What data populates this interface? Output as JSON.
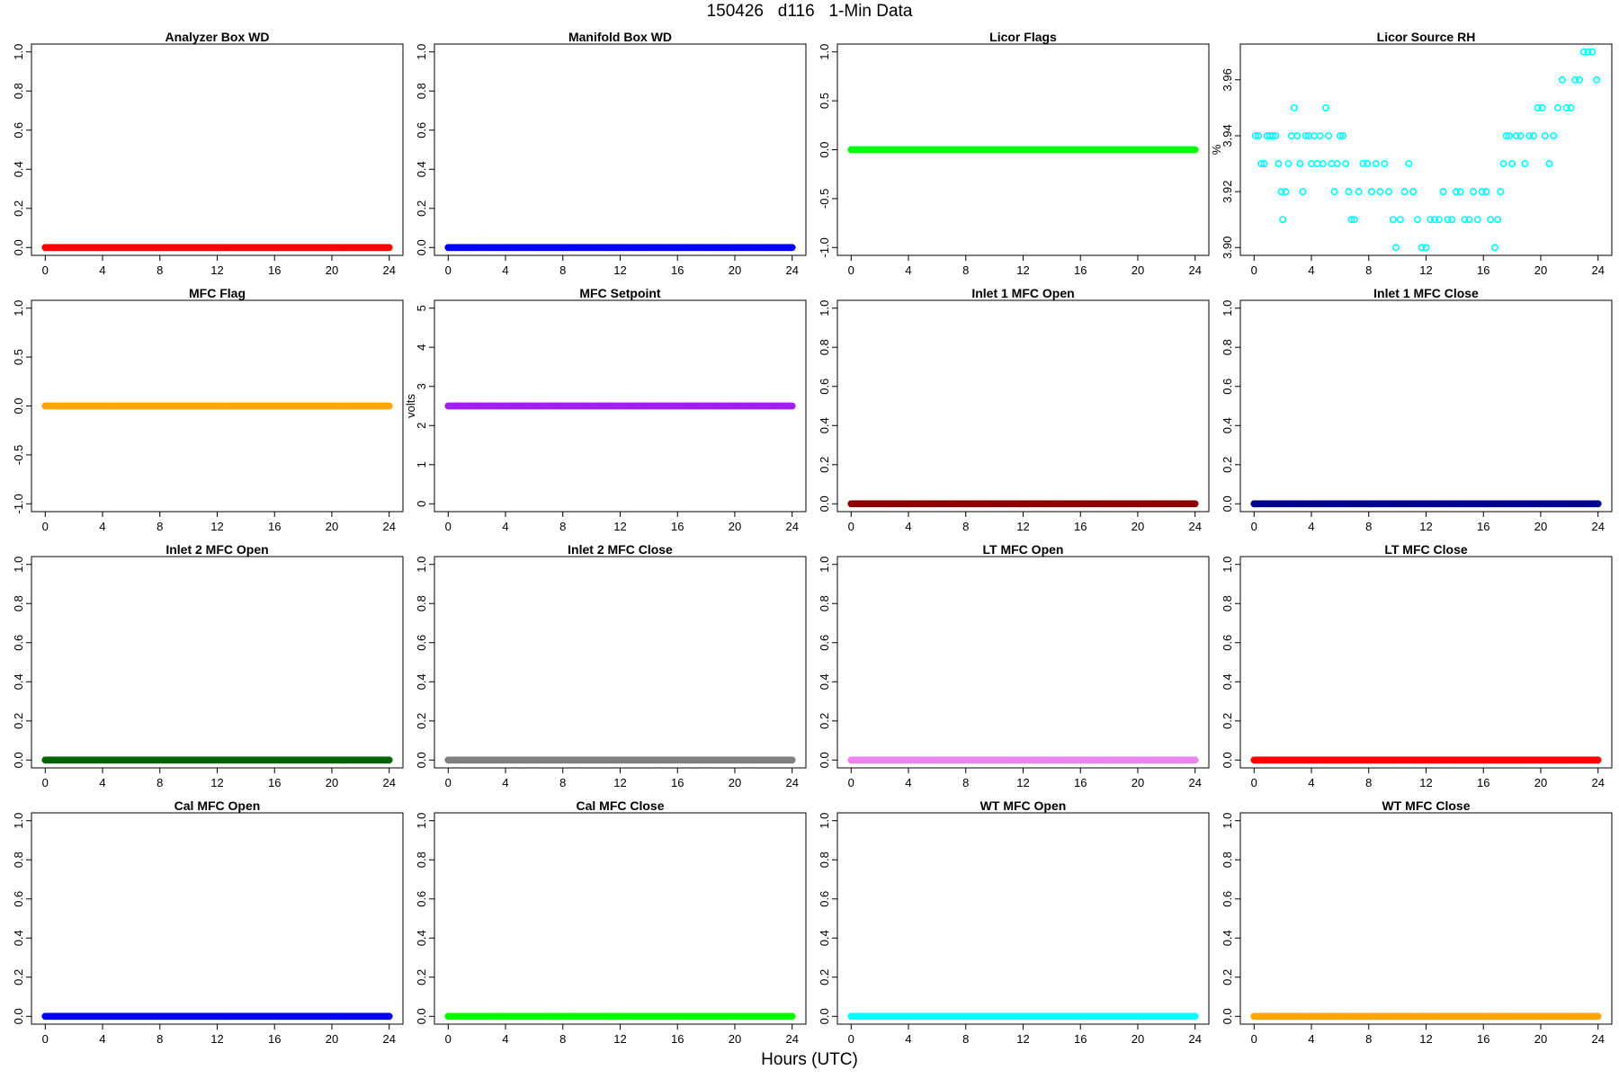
{
  "title": "150426   d116   1-Min Data",
  "xlabel": "Hours (UTC)",
  "chart_data": [
    {
      "type": "scatter",
      "title": "Analyzer Box WD",
      "ylabel": "",
      "color": "#ff0000",
      "xlim": [
        0,
        24
      ],
      "ylim": [
        0,
        1
      ],
      "xticks": [
        "0",
        "4",
        "8",
        "12",
        "16",
        "20",
        "24"
      ],
      "yticks": [
        "0.0",
        "0.2",
        "0.4",
        "0.6",
        "0.8",
        "1.0"
      ],
      "constant": 0
    },
    {
      "type": "scatter",
      "title": "Manifold Box WD",
      "ylabel": "",
      "color": "#0000ff",
      "xlim": [
        0,
        24
      ],
      "ylim": [
        0,
        1
      ],
      "xticks": [
        "0",
        "4",
        "8",
        "12",
        "16",
        "20",
        "24"
      ],
      "yticks": [
        "0.0",
        "0.2",
        "0.4",
        "0.6",
        "0.8",
        "1.0"
      ],
      "constant": 0
    },
    {
      "type": "scatter",
      "title": "Licor Flags",
      "ylabel": "",
      "color": "#00ff00",
      "xlim": [
        0,
        24
      ],
      "ylim": [
        -1,
        1
      ],
      "xticks": [
        "0",
        "4",
        "8",
        "12",
        "16",
        "20",
        "24"
      ],
      "yticks": [
        "-1.0",
        "-0.5",
        "0.0",
        "0.5",
        "1.0"
      ],
      "constant": 0
    },
    {
      "type": "scatter",
      "title": "Licor Source RH",
      "ylabel": "%",
      "color": "#00ffff",
      "xlim": [
        0,
        24
      ],
      "ylim": [
        3.9,
        3.97
      ],
      "xticks": [
        "0",
        "4",
        "8",
        "12",
        "16",
        "20",
        "24"
      ],
      "yticks": [
        "3.90",
        "3.92",
        "3.94",
        "3.96"
      ],
      "points": [
        [
          0.1,
          3.94
        ],
        [
          0.3,
          3.94
        ],
        [
          0.5,
          3.93
        ],
        [
          0.7,
          3.93
        ],
        [
          0.9,
          3.94
        ],
        [
          1.1,
          3.94
        ],
        [
          1.3,
          3.94
        ],
        [
          1.5,
          3.94
        ],
        [
          1.7,
          3.93
        ],
        [
          1.9,
          3.92
        ],
        [
          2.0,
          3.91
        ],
        [
          2.2,
          3.92
        ],
        [
          2.4,
          3.93
        ],
        [
          2.6,
          3.94
        ],
        [
          2.8,
          3.95
        ],
        [
          3.0,
          3.94
        ],
        [
          3.2,
          3.93
        ],
        [
          3.4,
          3.92
        ],
        [
          3.6,
          3.94
        ],
        [
          3.8,
          3.94
        ],
        [
          4.0,
          3.93
        ],
        [
          4.2,
          3.94
        ],
        [
          4.4,
          3.93
        ],
        [
          4.6,
          3.94
        ],
        [
          4.8,
          3.93
        ],
        [
          5.0,
          3.95
        ],
        [
          5.2,
          3.94
        ],
        [
          5.4,
          3.93
        ],
        [
          5.6,
          3.92
        ],
        [
          5.8,
          3.93
        ],
        [
          6.0,
          3.94
        ],
        [
          6.2,
          3.94
        ],
        [
          6.4,
          3.93
        ],
        [
          6.6,
          3.92
        ],
        [
          6.8,
          3.91
        ],
        [
          7.0,
          3.91
        ],
        [
          7.3,
          3.92
        ],
        [
          7.6,
          3.93
        ],
        [
          7.9,
          3.93
        ],
        [
          8.2,
          3.92
        ],
        [
          8.5,
          3.93
        ],
        [
          8.8,
          3.92
        ],
        [
          9.1,
          3.93
        ],
        [
          9.4,
          3.92
        ],
        [
          9.7,
          3.91
        ],
        [
          9.9,
          3.9
        ],
        [
          10.2,
          3.91
        ],
        [
          10.5,
          3.92
        ],
        [
          10.8,
          3.93
        ],
        [
          11.1,
          3.92
        ],
        [
          11.4,
          3.91
        ],
        [
          11.7,
          3.9
        ],
        [
          12.0,
          3.9
        ],
        [
          12.3,
          3.91
        ],
        [
          12.6,
          3.91
        ],
        [
          12.9,
          3.91
        ],
        [
          13.2,
          3.92
        ],
        [
          13.5,
          3.91
        ],
        [
          13.8,
          3.91
        ],
        [
          14.1,
          3.92
        ],
        [
          14.4,
          3.92
        ],
        [
          14.7,
          3.91
        ],
        [
          15.0,
          3.91
        ],
        [
          15.3,
          3.92
        ],
        [
          15.6,
          3.91
        ],
        [
          15.9,
          3.92
        ],
        [
          16.2,
          3.92
        ],
        [
          16.5,
          3.91
        ],
        [
          16.8,
          3.9
        ],
        [
          17.0,
          3.91
        ],
        [
          17.2,
          3.92
        ],
        [
          17.4,
          3.93
        ],
        [
          17.6,
          3.94
        ],
        [
          17.8,
          3.94
        ],
        [
          18.0,
          3.93
        ],
        [
          18.3,
          3.94
        ],
        [
          18.6,
          3.94
        ],
        [
          18.9,
          3.93
        ],
        [
          19.2,
          3.94
        ],
        [
          19.5,
          3.94
        ],
        [
          19.8,
          3.95
        ],
        [
          20.1,
          3.95
        ],
        [
          20.3,
          3.94
        ],
        [
          20.6,
          3.93
        ],
        [
          20.9,
          3.94
        ],
        [
          21.2,
          3.95
        ],
        [
          21.5,
          3.96
        ],
        [
          21.8,
          3.95
        ],
        [
          22.1,
          3.95
        ],
        [
          22.4,
          3.96
        ],
        [
          22.7,
          3.96
        ],
        [
          23.0,
          3.97
        ],
        [
          23.3,
          3.97
        ],
        [
          23.6,
          3.97
        ],
        [
          23.9,
          3.96
        ]
      ]
    },
    {
      "type": "scatter",
      "title": "MFC Flag",
      "ylabel": "",
      "color": "#ffa500",
      "xlim": [
        0,
        24
      ],
      "ylim": [
        -1,
        1
      ],
      "xticks": [
        "0",
        "4",
        "8",
        "12",
        "16",
        "20",
        "24"
      ],
      "yticks": [
        "-1.0",
        "-0.5",
        "0.0",
        "0.5",
        "1.0"
      ],
      "constant": 0
    },
    {
      "type": "scatter",
      "title": "MFC Setpoint",
      "ylabel": "volts",
      "color": "#a020f0",
      "xlim": [
        0,
        24
      ],
      "ylim": [
        0,
        5
      ],
      "xticks": [
        "0",
        "4",
        "8",
        "12",
        "16",
        "20",
        "24"
      ],
      "yticks": [
        "0",
        "1",
        "2",
        "3",
        "4",
        "5"
      ],
      "constant": 2.5
    },
    {
      "type": "scatter",
      "title": "Inlet 1 MFC Open",
      "ylabel": "",
      "color": "#8b0000",
      "xlim": [
        0,
        24
      ],
      "ylim": [
        0,
        1
      ],
      "xticks": [
        "0",
        "4",
        "8",
        "12",
        "16",
        "20",
        "24"
      ],
      "yticks": [
        "0.0",
        "0.2",
        "0.4",
        "0.6",
        "0.8",
        "1.0"
      ],
      "constant": 0
    },
    {
      "type": "scatter",
      "title": "Inlet 1 MFC Close",
      "ylabel": "",
      "color": "#00008b",
      "xlim": [
        0,
        24
      ],
      "ylim": [
        0,
        1
      ],
      "xticks": [
        "0",
        "4",
        "8",
        "12",
        "16",
        "20",
        "24"
      ],
      "yticks": [
        "0.0",
        "0.2",
        "0.4",
        "0.6",
        "0.8",
        "1.0"
      ],
      "constant": 0
    },
    {
      "type": "scatter",
      "title": "Inlet 2 MFC Open",
      "ylabel": "",
      "color": "#006400",
      "xlim": [
        0,
        24
      ],
      "ylim": [
        0,
        1
      ],
      "xticks": [
        "0",
        "4",
        "8",
        "12",
        "16",
        "20",
        "24"
      ],
      "yticks": [
        "0.0",
        "0.2",
        "0.4",
        "0.6",
        "0.8",
        "1.0"
      ],
      "constant": 0
    },
    {
      "type": "scatter",
      "title": "Inlet 2 MFC Close",
      "ylabel": "",
      "color": "#808080",
      "xlim": [
        0,
        24
      ],
      "ylim": [
        0,
        1
      ],
      "xticks": [
        "0",
        "4",
        "8",
        "12",
        "16",
        "20",
        "24"
      ],
      "yticks": [
        "0.0",
        "0.2",
        "0.4",
        "0.6",
        "0.8",
        "1.0"
      ],
      "constant": 0
    },
    {
      "type": "scatter",
      "title": "LT MFC Open",
      "ylabel": "",
      "color": "#ee82ee",
      "xlim": [
        0,
        24
      ],
      "ylim": [
        0,
        1
      ],
      "xticks": [
        "0",
        "4",
        "8",
        "12",
        "16",
        "20",
        "24"
      ],
      "yticks": [
        "0.0",
        "0.2",
        "0.4",
        "0.6",
        "0.8",
        "1.0"
      ],
      "constant": 0
    },
    {
      "type": "scatter",
      "title": "LT MFC Close",
      "ylabel": "",
      "color": "#ff0000",
      "xlim": [
        0,
        24
      ],
      "ylim": [
        0,
        1
      ],
      "xticks": [
        "0",
        "4",
        "8",
        "12",
        "16",
        "20",
        "24"
      ],
      "yticks": [
        "0.0",
        "0.2",
        "0.4",
        "0.6",
        "0.8",
        "1.0"
      ],
      "constant": 0
    },
    {
      "type": "scatter",
      "title": "Cal MFC Open",
      "ylabel": "",
      "color": "#0000ff",
      "xlim": [
        0,
        24
      ],
      "ylim": [
        0,
        1
      ],
      "xticks": [
        "0",
        "4",
        "8",
        "12",
        "16",
        "20",
        "24"
      ],
      "yticks": [
        "0.0",
        "0.2",
        "0.4",
        "0.6",
        "0.8",
        "1.0"
      ],
      "constant": 0
    },
    {
      "type": "scatter",
      "title": "Cal MFC Close",
      "ylabel": "",
      "color": "#00ff00",
      "xlim": [
        0,
        24
      ],
      "ylim": [
        0,
        1
      ],
      "xticks": [
        "0",
        "4",
        "8",
        "12",
        "16",
        "20",
        "24"
      ],
      "yticks": [
        "0.0",
        "0.2",
        "0.4",
        "0.6",
        "0.8",
        "1.0"
      ],
      "constant": 0
    },
    {
      "type": "scatter",
      "title": "WT MFC Open",
      "ylabel": "",
      "color": "#00ffff",
      "xlim": [
        0,
        24
      ],
      "ylim": [
        0,
        1
      ],
      "xticks": [
        "0",
        "4",
        "8",
        "12",
        "16",
        "20",
        "24"
      ],
      "yticks": [
        "0.0",
        "0.2",
        "0.4",
        "0.6",
        "0.8",
        "1.0"
      ],
      "constant": 0
    },
    {
      "type": "scatter",
      "title": "WT MFC Close",
      "ylabel": "",
      "color": "#ffa500",
      "xlim": [
        0,
        24
      ],
      "ylim": [
        0,
        1
      ],
      "xticks": [
        "0",
        "4",
        "8",
        "12",
        "16",
        "20",
        "24"
      ],
      "yticks": [
        "0.0",
        "0.2",
        "0.4",
        "0.6",
        "0.8",
        "1.0"
      ],
      "constant": 0
    }
  ]
}
